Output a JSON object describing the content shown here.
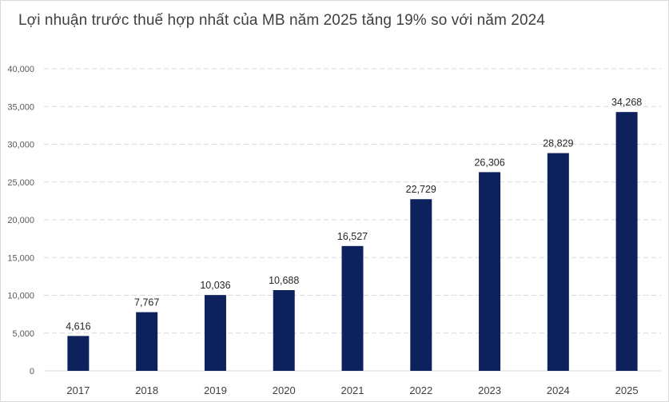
{
  "chart_data": {
    "type": "bar",
    "title": "Lợi nhuận trước thuế hợp nhất của MB năm 2025 tăng 19% so với năm 2024",
    "categories": [
      "2017",
      "2018",
      "2019",
      "2020",
      "2021",
      "2022",
      "2023",
      "2024",
      "2025"
    ],
    "values": [
      4616,
      7767,
      10036,
      10688,
      16527,
      22729,
      26306,
      28829,
      34268
    ],
    "value_labels": [
      "4,616",
      "7,767",
      "10,036",
      "10,688",
      "16,527",
      "22,729",
      "26,306",
      "28,829",
      "34,268"
    ],
    "yticks": [
      0,
      5000,
      10000,
      15000,
      20000,
      25000,
      30000,
      35000,
      40000
    ],
    "ytick_labels": [
      "0",
      "5,000",
      "10,000",
      "15,000",
      "20,000",
      "25,000",
      "30,000",
      "35,000",
      "40,000"
    ],
    "ylim": [
      0,
      40000
    ],
    "xlabel": "",
    "ylabel": "",
    "grid": true,
    "legend": "none",
    "bar_color": "#0d215d",
    "grid_color": "#d9d9d9"
  }
}
